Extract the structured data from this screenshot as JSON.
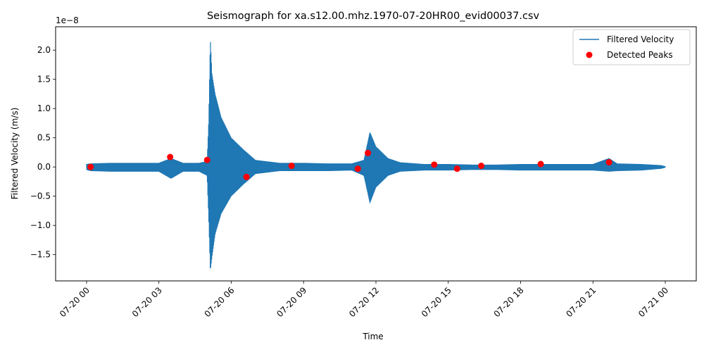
{
  "chart_data": {
    "type": "line",
    "title": "Seismograph for xa.s12.00.mhz.1970-07-20HR00_evid00037.csv",
    "xlabel": "Time",
    "ylabel": "Filtered Velocity (m/s)",
    "y_offset_label": "1e−8",
    "x_axis_type": "datetime",
    "xlim": [
      "1970-07-19 22:43",
      "1970-07-21 01:17"
    ],
    "ylim": [
      -1.95e-08,
      2.4e-08
    ],
    "x_tick_labels": [
      "07-20 00",
      "07-20 03",
      "07-20 06",
      "07-20 09",
      "07-20 12",
      "07-20 15",
      "07-20 18",
      "07-20 21",
      "07-21 00"
    ],
    "x_tick_values": [
      "1970-07-20 00:00",
      "1970-07-20 03:00",
      "1970-07-20 06:00",
      "1970-07-20 09:00",
      "1970-07-20 12:00",
      "1970-07-20 15:00",
      "1970-07-20 18:00",
      "1970-07-20 21:00",
      "1970-07-21 00:00"
    ],
    "y_ticks": [
      -1.5e-08,
      -1e-08,
      -5e-09,
      0.0,
      5e-09,
      1e-08,
      1.5e-08,
      2e-08
    ],
    "y_tick_labels": [
      "−1.5",
      "−1.0",
      "−0.5",
      "0.0",
      "0.5",
      "1.0",
      "1.5",
      "2.0"
    ],
    "legend_position": "upper right",
    "grid": false,
    "series": [
      {
        "name": "Filtered Velocity",
        "kind": "line",
        "color": "#1f77b4",
        "x": [
          "1970-07-20 00:00",
          "1970-07-20 00:10",
          "1970-07-20 01:00",
          "1970-07-20 02:00",
          "1970-07-20 03:00",
          "1970-07-20 03:30",
          "1970-07-20 04:00",
          "1970-07-20 04:40",
          "1970-07-20 05:00",
          "1970-07-20 05:04",
          "1970-07-20 05:08",
          "1970-07-20 05:12",
          "1970-07-20 05:20",
          "1970-07-20 05:35",
          "1970-07-20 06:00",
          "1970-07-20 06:30",
          "1970-07-20 07:00",
          "1970-07-20 08:00",
          "1970-07-20 09:00",
          "1970-07-20 10:00",
          "1970-07-20 11:00",
          "1970-07-20 11:30",
          "1970-07-20 11:45",
          "1970-07-20 12:00",
          "1970-07-20 12:30",
          "1970-07-20 13:00",
          "1970-07-20 14:00",
          "1970-07-20 15:00",
          "1970-07-20 16:00",
          "1970-07-20 17:00",
          "1970-07-20 18:00",
          "1970-07-20 19:00",
          "1970-07-20 20:00",
          "1970-07-20 21:00",
          "1970-07-20 21:40",
          "1970-07-20 22:00",
          "1970-07-20 23:00",
          "1970-07-20 23:50",
          "1970-07-21 00:00"
        ],
        "y_max": [
          5e-10,
          6e-10,
          7e-10,
          7e-10,
          7e-10,
          1.5e-09,
          7e-10,
          7e-10,
          1e-09,
          8e-09,
          2.2e-08,
          1.6e-08,
          1.25e-08,
          8.5e-09,
          5e-09,
          3e-09,
          1.2e-09,
          7e-10,
          7e-10,
          6e-10,
          6e-10,
          1.2e-09,
          6e-09,
          3.5e-09,
          1.5e-09,
          8e-10,
          5e-10,
          5e-10,
          4e-10,
          4e-10,
          5e-10,
          5e-10,
          5e-10,
          5e-10,
          1.5e-09,
          6e-10,
          5e-10,
          3e-10,
          1e-10
        ],
        "y_min": [
          -5e-10,
          -7e-10,
          -8e-10,
          -8e-10,
          -8e-10,
          -2e-09,
          -8e-10,
          -8e-10,
          -1.5e-09,
          -9e-09,
          -1.78e-08,
          -1.55e-08,
          -1.15e-08,
          -8e-09,
          -5e-09,
          -3e-09,
          -1.2e-09,
          -7e-10,
          -7e-10,
          -7e-10,
          -6e-10,
          -1.5e-09,
          -6.2e-09,
          -3.5e-09,
          -1.5e-09,
          -8e-10,
          -6e-10,
          -6e-10,
          -5e-10,
          -5e-10,
          -6e-10,
          -6e-10,
          -6e-10,
          -6e-10,
          -8e-10,
          -7e-10,
          -6e-10,
          -3e-10,
          -1e-10
        ]
      },
      {
        "name": "Detected Peaks",
        "kind": "scatter",
        "color": "#ff0000",
        "x": [
          "1970-07-20 00:10",
          "1970-07-20 03:28",
          "1970-07-20 05:00",
          "1970-07-20 06:38",
          "1970-07-20 08:30",
          "1970-07-20 11:15",
          "1970-07-20 11:40",
          "1970-07-20 14:25",
          "1970-07-20 15:22",
          "1970-07-20 16:22",
          "1970-07-20 18:50",
          "1970-07-20 21:40"
        ],
        "y": [
          0.0,
          1.7e-09,
          1.2e-09,
          -1.7e-09,
          2e-10,
          -3e-10,
          2.4e-09,
          4e-10,
          -3e-10,
          2e-10,
          5e-10,
          8e-10
        ]
      }
    ]
  }
}
